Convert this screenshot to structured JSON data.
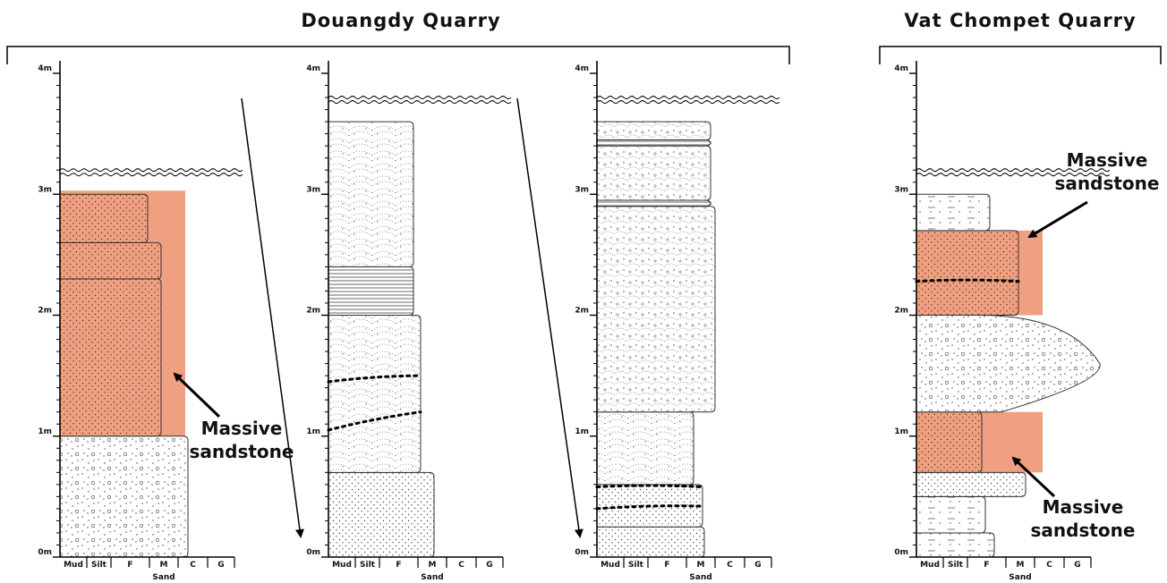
{
  "titles": [
    "Douangdy Quarry",
    "Vat Chompet Quarry"
  ],
  "columns": [
    {
      "depth_labels": [
        "0m",
        "1m",
        "2m",
        "3m",
        "4m"
      ],
      "grain_labels": [
        "Mud",
        "Silt",
        "F",
        "M",
        "C",
        "G"
      ],
      "grain_group": "Sand"
    },
    {
      "depth_labels": [
        "0m",
        "1m",
        "2m",
        "3m",
        "4m"
      ],
      "grain_labels": [
        "Mud",
        "Silt",
        "F",
        "M",
        "C",
        "G"
      ],
      "grain_group": "Sand"
    },
    {
      "depth_labels": [
        "0m",
        "1m",
        "2m",
        "3m",
        "4m"
      ],
      "grain_labels": [
        "Mud",
        "Silt",
        "F",
        "M",
        "C",
        "G"
      ],
      "grain_group": "Sand"
    },
    {
      "depth_labels": [
        "0m",
        "1m",
        "2m",
        "3m",
        "4m"
      ],
      "grain_labels": [
        "Mud",
        "Silt",
        "F",
        "M",
        "C",
        "G"
      ],
      "grain_group": "Sand"
    }
  ],
  "annotations": [
    {
      "line1": "Massive",
      "line2": "sandstone"
    },
    {
      "line1": "Massive",
      "line2": "sandstone"
    },
    {
      "line1": "Massive",
      "line2": "sandstone"
    }
  ]
}
